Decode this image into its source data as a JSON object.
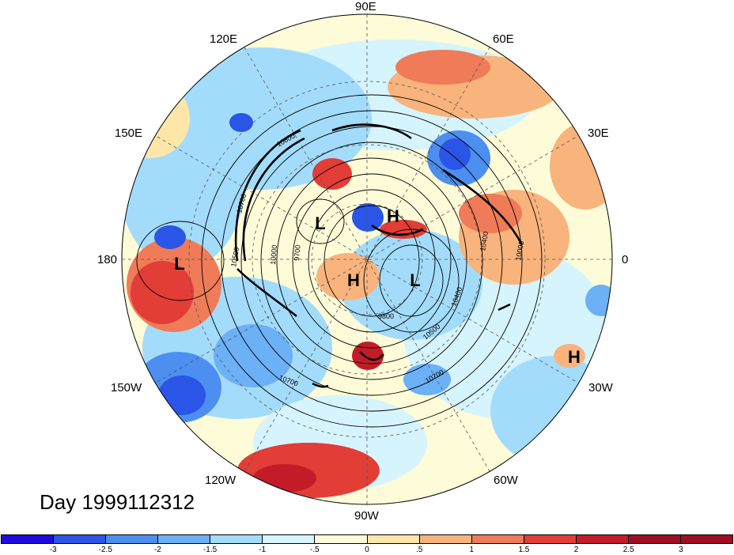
{
  "title": "Day 1999112312",
  "longitude_labels": {
    "e90": "90E",
    "e120": "120E",
    "e60": "60E",
    "e150": "150E",
    "e30": "30E",
    "lon180": "180",
    "lon0": "0",
    "w150": "150W",
    "w30": "30W",
    "w120": "120W",
    "w60": "60W",
    "w90": "90W"
  },
  "pressure_centers": [
    {
      "label": "L",
      "where": "north pacific"
    },
    {
      "label": "L",
      "where": "east siberia"
    },
    {
      "label": "H",
      "where": "kara sea"
    },
    {
      "label": "H",
      "where": "arctic"
    },
    {
      "label": "L",
      "where": "greenland"
    },
    {
      "label": "H",
      "where": "mid atlantic"
    }
  ],
  "contour_labels": [
    "10600",
    "10700",
    "10000",
    "9700",
    "9800",
    "10400",
    "10500",
    "10700",
    "10700",
    "10500",
    "10400",
    "10000"
  ],
  "colorbar": {
    "colors": [
      "#1e0be0",
      "#2a55e6",
      "#4c8ff0",
      "#6cb0f5",
      "#a3dcfb",
      "#d6f4fd",
      "#fdfbd8",
      "#fde6a8",
      "#f9b37c",
      "#ef7b58",
      "#e33d37",
      "#c41b29",
      "#a10d20"
    ],
    "ticks": [
      "-3",
      "-2.5",
      "-2",
      "-1.5",
      "-1",
      "-.5",
      "0",
      ".5",
      "1",
      "1.5",
      "2",
      "2.5",
      "3"
    ]
  }
}
